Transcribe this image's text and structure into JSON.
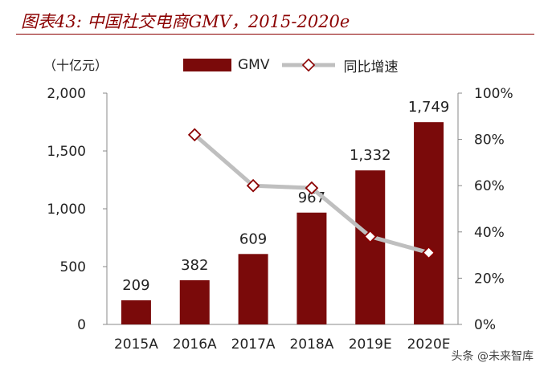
{
  "header": {
    "figure_title": "图表43: 中国社交电商GMV，2015-2020e",
    "unit": "（十亿元）"
  },
  "legend": [
    {
      "label": "GMV",
      "kind": "bar",
      "color": "#7A0A0A"
    },
    {
      "label": "同比增速",
      "kind": "line",
      "color": "#BFBFBF",
      "marker_edge": "#8B0000"
    }
  ],
  "watermark": "头条 @未来智库",
  "colors": {
    "accent": "#8B0000",
    "bar": "#7A0A0A",
    "line": "#BFBFBF",
    "marker": "#8B0000"
  },
  "chart_data": {
    "type": "bar",
    "categories": [
      "2015A",
      "2016A",
      "2017A",
      "2018A",
      "2019E",
      "2020E"
    ],
    "series": [
      {
        "name": "GMV",
        "type": "bar",
        "axis": "left",
        "values": [
          209,
          382,
          609,
          967,
          1332,
          1749
        ],
        "labels": [
          "209",
          "382",
          "609",
          "967",
          "1,332",
          "1,749"
        ]
      },
      {
        "name": "同比增速",
        "type": "line",
        "axis": "right",
        "values": [
          null,
          82,
          60,
          59,
          38,
          31
        ]
      }
    ],
    "ylim": [
      0,
      2000
    ],
    "yticks": [
      "0",
      "500",
      "1,000",
      "1,500",
      "2,000"
    ],
    "y2lim": [
      0,
      100
    ],
    "y2ticks": [
      "0%",
      "20%",
      "40%",
      "60%",
      "80%",
      "100%"
    ],
    "legend_position": "top"
  }
}
